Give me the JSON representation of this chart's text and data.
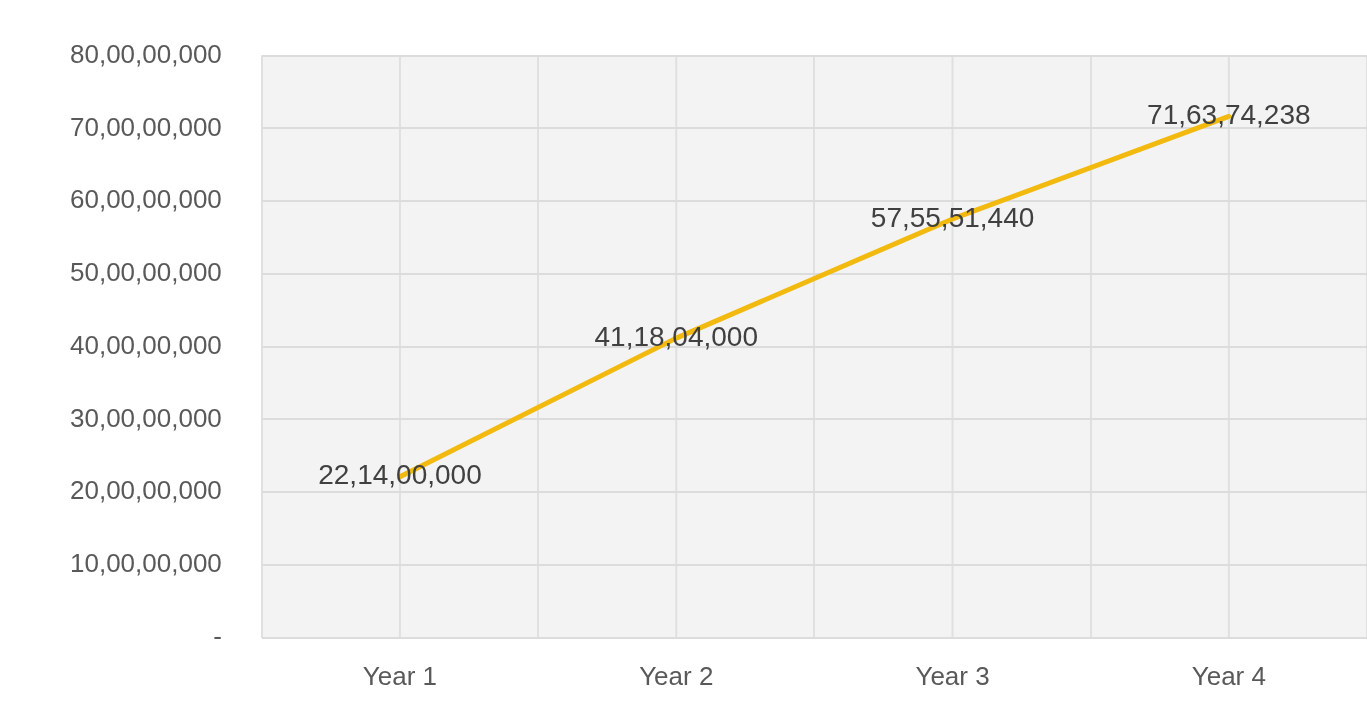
{
  "chart_data": {
    "type": "line",
    "categories": [
      "Year 1",
      "Year 2",
      "Year 3",
      "Year 4"
    ],
    "series": [
      {
        "color": "#f2b90f",
        "values": [
          221400000,
          411804000,
          575551440,
          716374238
        ],
        "value_labels": [
          "22,14,00,000",
          "41,18,04,000",
          "57,55,51,440",
          "71,63,74,238"
        ]
      }
    ],
    "ylim": [
      0,
      800000000
    ],
    "yticks": [
      {
        "value": 0,
        "label": "-"
      },
      {
        "value": 100000000,
        "label": "10,00,00,000"
      },
      {
        "value": 200000000,
        "label": "20,00,00,000"
      },
      {
        "value": 300000000,
        "label": "30,00,00,000"
      },
      {
        "value": 400000000,
        "label": "40,00,00,000"
      },
      {
        "value": 500000000,
        "label": "50,00,00,000"
      },
      {
        "value": 600000000,
        "label": "60,00,00,000"
      },
      {
        "value": 700000000,
        "label": "70,00,00,000"
      },
      {
        "value": 800000000,
        "label": "80,00,00,000"
      }
    ],
    "grid": true,
    "legend": false,
    "marker": "none",
    "line_style": "solid"
  }
}
